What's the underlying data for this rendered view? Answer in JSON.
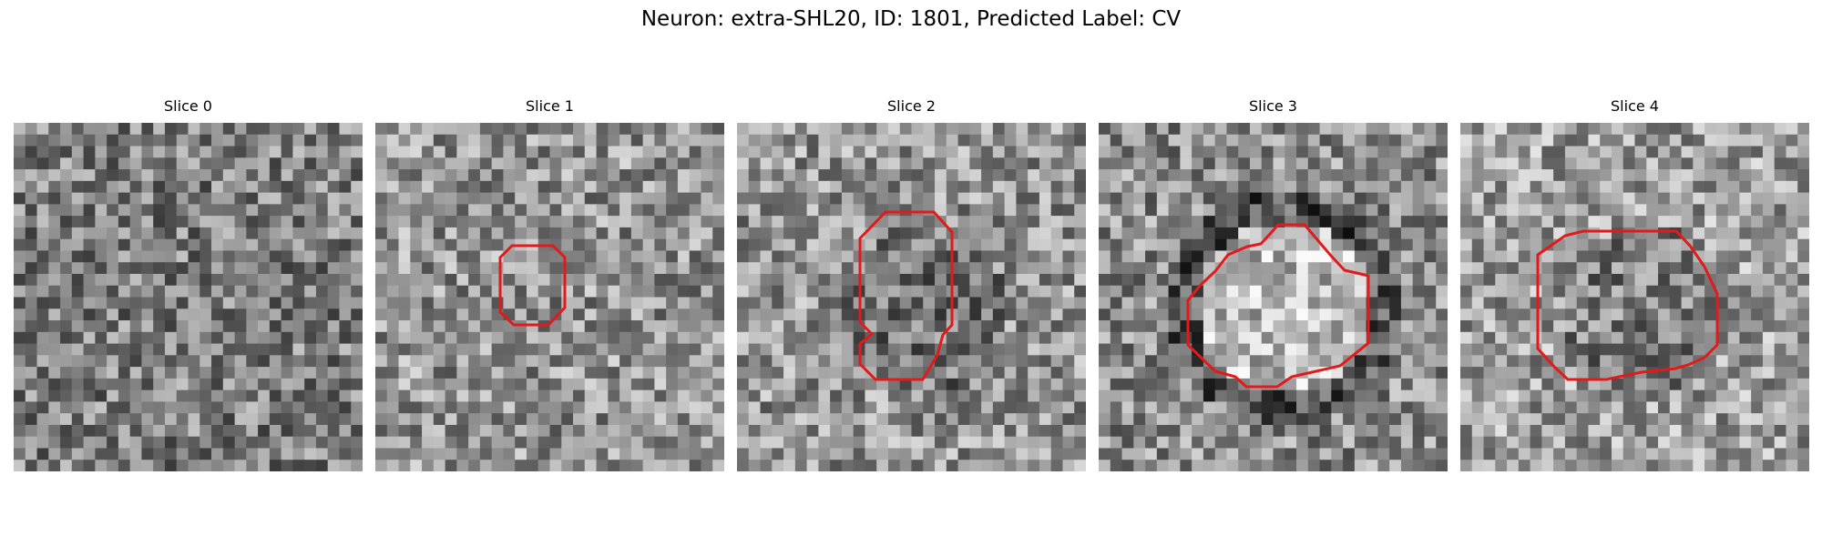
{
  "figure": {
    "title": "Neuron: extra-SHL20, ID: 1801, Predicted Label: CV",
    "outline_color": "#e31a1c",
    "colormap": "gray"
  },
  "slices": [
    {
      "title": "Slice 0",
      "brightness": 0.5,
      "spot": "none",
      "has_outline": false
    },
    {
      "title": "Slice 1",
      "brightness": 0.58,
      "spot": "none",
      "has_outline": true
    },
    {
      "title": "Slice 2",
      "brightness": 0.58,
      "spot": "dark",
      "has_outline": true
    },
    {
      "title": "Slice 3",
      "brightness": 0.55,
      "spot": "bright",
      "has_outline": true
    },
    {
      "title": "Slice 4",
      "brightness": 0.62,
      "spot": "dark",
      "has_outline": true
    }
  ]
}
